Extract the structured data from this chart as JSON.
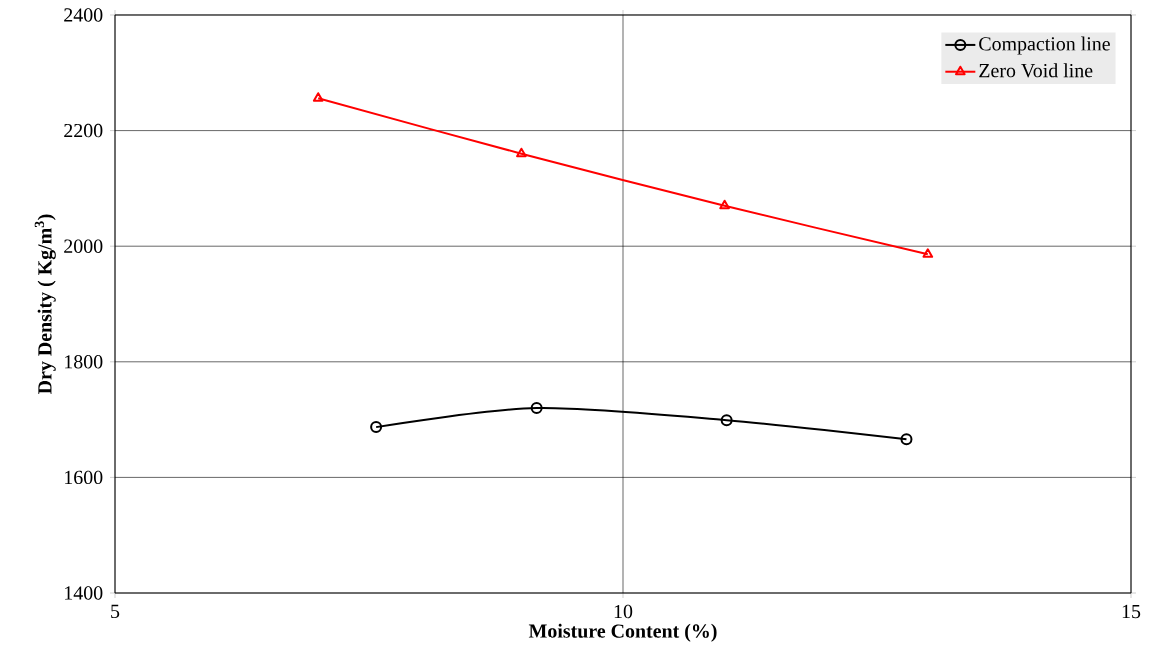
{
  "chart_data": {
    "type": "line",
    "xlabel": "Moisture Content (%)",
    "ylabel": "Dry Density ( Kg/m$^{3}$)",
    "xlim": [
      5,
      15
    ],
    "xticks": [
      5,
      10,
      15
    ],
    "ylim": [
      1400,
      2400
    ],
    "yticks": [
      1400,
      1600,
      1800,
      2000,
      2200,
      2400
    ],
    "grid": true,
    "legend": "top right",
    "series": [
      {
        "name": "Compaction line",
        "color": "#000000",
        "marker": "circle",
        "x": [
          7.57,
          9.15,
          11.02,
          12.79
        ],
        "values": [
          1687,
          1720,
          1699,
          1666
        ]
      },
      {
        "name": "Zero Void line",
        "color": "#ff0000",
        "marker": "triangle",
        "x": [
          7.0,
          9.0,
          11.0,
          13.0
        ],
        "values": [
          2256,
          2160,
          2070,
          1986
        ]
      }
    ]
  }
}
